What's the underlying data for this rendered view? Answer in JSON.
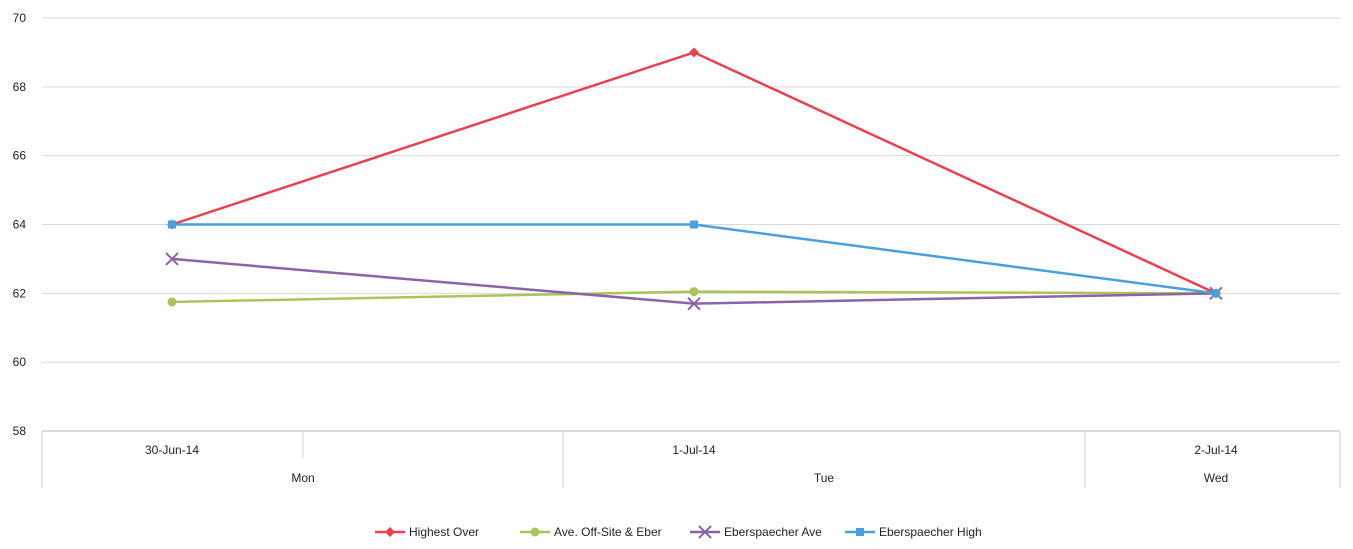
{
  "chart_data": {
    "type": "line",
    "title": "",
    "xlabel": "",
    "ylabel": "",
    "categories": [
      "30-Jun-14",
      "1-Jul-14",
      "2-Jul-14"
    ],
    "day_labels": [
      "Mon",
      "Tue",
      "Wed"
    ],
    "ylim": [
      58,
      70
    ],
    "yticks": [
      "58",
      "60",
      "62",
      "64",
      "66",
      "68",
      "70"
    ],
    "grid": true,
    "legend_position": "bottom",
    "series": [
      {
        "name": "Highest Over",
        "values": [
          64,
          69,
          62
        ],
        "color": "#e8414f",
        "marker": "diamond"
      },
      {
        "name": "Ave. Off-Site & Eber",
        "values": [
          61.75,
          62.05,
          62
        ],
        "color": "#a9c45a",
        "marker": "circle"
      },
      {
        "name": "Eberspaecher Ave",
        "values": [
          63,
          61.7,
          62
        ],
        "color": "#8a64a8",
        "marker": "x"
      },
      {
        "name": "Eberspaecher High",
        "values": [
          64,
          64,
          62
        ],
        "color": "#4a9fdc",
        "marker": "square"
      }
    ]
  }
}
